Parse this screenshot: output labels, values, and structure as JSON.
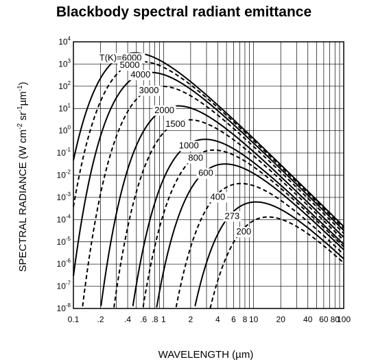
{
  "chart_data": {
    "type": "line",
    "title": "Blackbody spectral radiant emittance",
    "xlabel": "WAVELENGTH (µm)",
    "ylabel": "SPECTRAL RADIANCE (W cm-2 sr-1µm-1)",
    "x_scale": "log",
    "y_scale": "log",
    "xlim": [
      0.1,
      100
    ],
    "ylim": [
      1e-08,
      10000.0
    ],
    "grid": true,
    "x_ticks": [
      {
        "value": 0.1,
        "label": "0.1"
      },
      {
        "value": 0.2,
        "label": ".2"
      },
      {
        "value": 0.4,
        "label": ".4"
      },
      {
        "value": 0.6,
        "label": ".6"
      },
      {
        "value": 0.8,
        "label": ".8"
      },
      {
        "value": 1,
        "label": "1"
      },
      {
        "value": 2,
        "label": "2"
      },
      {
        "value": 4,
        "label": "4"
      },
      {
        "value": 6,
        "label": "6"
      },
      {
        "value": 8,
        "label": "8"
      },
      {
        "value": 10,
        "label": "10"
      },
      {
        "value": 20,
        "label": "20"
      },
      {
        "value": 40,
        "label": "40"
      },
      {
        "value": 60,
        "label": "60"
      },
      {
        "value": 80,
        "label": "80"
      },
      {
        "value": 100,
        "label": "100"
      }
    ],
    "y_ticks": [
      {
        "value": 10000.0,
        "base": "10",
        "exp": "4"
      },
      {
        "value": 1000.0,
        "base": "10",
        "exp": "3"
      },
      {
        "value": 100.0,
        "base": "10",
        "exp": "2"
      },
      {
        "value": 10.0,
        "base": "10",
        "exp": "1"
      },
      {
        "value": 1.0,
        "base": "10",
        "exp": "0"
      },
      {
        "value": 0.1,
        "base": "10",
        "exp": "-1"
      },
      {
        "value": 0.01,
        "base": "10",
        "exp": "-2"
      },
      {
        "value": 0.001,
        "base": "10",
        "exp": "-3"
      },
      {
        "value": 0.0001,
        "base": "10",
        "exp": "-4"
      },
      {
        "value": 1e-05,
        "base": "10",
        "exp": "-5"
      },
      {
        "value": 1e-06,
        "base": "10",
        "exp": "-6"
      },
      {
        "value": 1e-07,
        "base": "10",
        "exp": "-7"
      },
      {
        "value": 1e-08,
        "base": "10",
        "exp": "-8"
      }
    ],
    "series": [
      {
        "temperature_K": 6000,
        "label": "T(K)=6000",
        "style": "solid"
      },
      {
        "temperature_K": 5000,
        "label": "5000",
        "style": "dashed"
      },
      {
        "temperature_K": 4000,
        "label": "4000",
        "style": "solid"
      },
      {
        "temperature_K": 3000,
        "label": "3000",
        "style": "dashed"
      },
      {
        "temperature_K": 2000,
        "label": "2000",
        "style": "solid"
      },
      {
        "temperature_K": 1500,
        "label": "1500",
        "style": "dashed"
      },
      {
        "temperature_K": 1000,
        "label": "1000",
        "style": "solid"
      },
      {
        "temperature_K": 800,
        "label": "800",
        "style": "dashed"
      },
      {
        "temperature_K": 600,
        "label": "600",
        "style": "solid"
      },
      {
        "temperature_K": 400,
        "label": "400",
        "style": "dashed"
      },
      {
        "temperature_K": 273,
        "label": "273",
        "style": "solid"
      },
      {
        "temperature_K": 200,
        "label": "200",
        "style": "dashed"
      }
    ]
  }
}
